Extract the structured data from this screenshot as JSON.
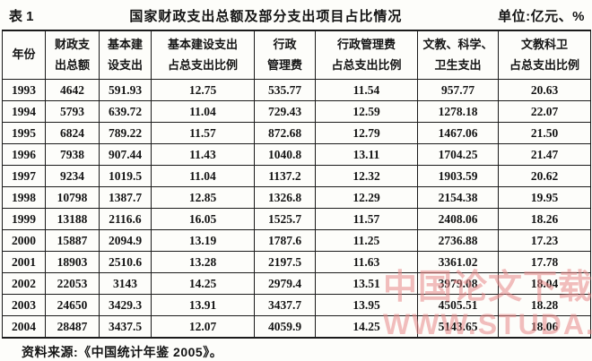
{
  "caption": {
    "label": "表 1",
    "title": "国家财政支出总额及部分支出项目占比情况",
    "unit": "单位:亿元、%"
  },
  "table": {
    "headers": [
      {
        "lines": [
          "年份"
        ]
      },
      {
        "lines": [
          "财政支",
          "出总额"
        ]
      },
      {
        "lines": [
          "基本建",
          "设支出"
        ]
      },
      {
        "lines": [
          "基本建设支出",
          "占总支出比例"
        ]
      },
      {
        "lines": [
          "行政",
          "管理费"
        ]
      },
      {
        "lines": [
          "行政管理费",
          "占总支出比例"
        ]
      },
      {
        "lines": [
          "文教、科学、",
          "卫生支出"
        ]
      },
      {
        "lines": [
          "文教科卫",
          "占总支出比例"
        ]
      }
    ],
    "rows": [
      [
        "1993",
        "4642",
        "591.93",
        "12.75",
        "535.77",
        "11.54",
        "957.77",
        "20.63"
      ],
      [
        "1994",
        "5793",
        "639.72",
        "11.04",
        "729.43",
        "12.59",
        "1278.18",
        "22.07"
      ],
      [
        "1995",
        "6824",
        "789.22",
        "11.57",
        "872.68",
        "12.79",
        "1467.06",
        "21.50"
      ],
      [
        "1996",
        "7938",
        "907.44",
        "11.43",
        "1040.8",
        "13.11",
        "1704.25",
        "21.47"
      ],
      [
        "1997",
        "9234",
        "1019.5",
        "11.04",
        "1137.2",
        "12.32",
        "1903.59",
        "20.62"
      ],
      [
        "1998",
        "10798",
        "1387.7",
        "12.85",
        "1326.8",
        "12.29",
        "2154.38",
        "19.95"
      ],
      [
        "1999",
        "13188",
        "2116.6",
        "16.05",
        "1525.7",
        "11.57",
        "2408.06",
        "18.26"
      ],
      [
        "2000",
        "15887",
        "2094.9",
        "13.19",
        "1787.6",
        "11.25",
        "2736.88",
        "17.23"
      ],
      [
        "2001",
        "18903",
        "2510.6",
        "13.28",
        "2197.5",
        "11.63",
        "3361.02",
        "17.78"
      ],
      [
        "2002",
        "22053",
        "3143",
        "14.25",
        "2979.4",
        "13.51",
        "3979.08",
        "18.04"
      ],
      [
        "2003",
        "24650",
        "3429.3",
        "13.91",
        "3437.7",
        "13.95",
        "4505.51",
        "18.28"
      ],
      [
        "2004",
        "28487",
        "3437.5",
        "12.07",
        "4059.9",
        "14.25",
        "5143.65",
        "18.06"
      ]
    ]
  },
  "footer": {
    "source": "资料来源:《中国统计年鉴 2005》。"
  },
  "watermark": {
    "line1": "中国论文下载",
    "line2": "WWW.STUDA.",
    "color": "#e98a8a"
  }
}
